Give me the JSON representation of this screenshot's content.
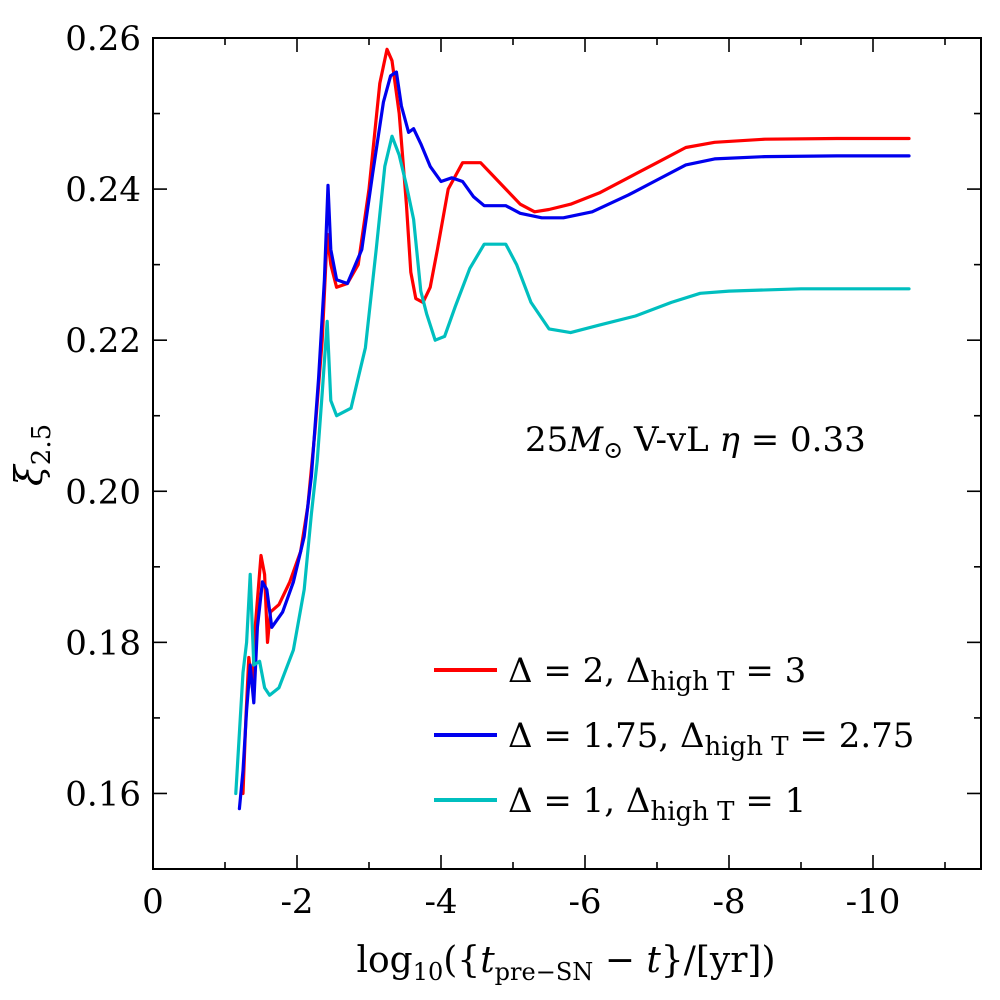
{
  "chart_data": {
    "type": "line",
    "title": "",
    "xlabel": "log10({t_pre-SN − t}/[yr])",
    "ylabel": "ξ2.5",
    "xlim": [
      0,
      -11.5
    ],
    "ylim": [
      0.15,
      0.26
    ],
    "x_ticks": [
      "0",
      "-2",
      "-4",
      "-6",
      "-8",
      "-10"
    ],
    "y_ticks": [
      "0.16",
      "0.18",
      "0.20",
      "0.22",
      "0.24",
      "0.26"
    ],
    "annotation": "25M⊙ V-vL η = 0.33",
    "legend": {
      "position": "lower-right"
    },
    "series": [
      {
        "name": "Δ = 2, Δhigh T = 3",
        "label_main": "Δ = 2, Δ",
        "label_sub": "high T",
        "label_tail": " = 3",
        "color": "#ff0000",
        "points": [
          [
            -1.25,
            0.16
          ],
          [
            -1.29,
            0.17
          ],
          [
            -1.33,
            0.178
          ],
          [
            -1.38,
            0.174
          ],
          [
            -1.42,
            0.182
          ],
          [
            -1.5,
            0.1915
          ],
          [
            -1.55,
            0.189
          ],
          [
            -1.59,
            0.18
          ],
          [
            -1.63,
            0.184
          ],
          [
            -1.75,
            0.185
          ],
          [
            -1.9,
            0.188
          ],
          [
            -2.05,
            0.192
          ],
          [
            -2.15,
            0.198
          ],
          [
            -2.25,
            0.208
          ],
          [
            -2.35,
            0.22
          ],
          [
            -2.42,
            0.234
          ],
          [
            -2.47,
            0.23
          ],
          [
            -2.55,
            0.227
          ],
          [
            -2.7,
            0.2275
          ],
          [
            -2.85,
            0.23
          ],
          [
            -3.0,
            0.24
          ],
          [
            -3.15,
            0.254
          ],
          [
            -3.25,
            0.2585
          ],
          [
            -3.32,
            0.257
          ],
          [
            -3.42,
            0.25
          ],
          [
            -3.52,
            0.238
          ],
          [
            -3.58,
            0.229
          ],
          [
            -3.65,
            0.2255
          ],
          [
            -3.75,
            0.225
          ],
          [
            -3.85,
            0.227
          ],
          [
            -3.95,
            0.232
          ],
          [
            -4.1,
            0.24
          ],
          [
            -4.3,
            0.2435
          ],
          [
            -4.55,
            0.2435
          ],
          [
            -4.7,
            0.242
          ],
          [
            -4.9,
            0.24
          ],
          [
            -5.1,
            0.238
          ],
          [
            -5.3,
            0.237
          ],
          [
            -5.5,
            0.2373
          ],
          [
            -5.8,
            0.238
          ],
          [
            -6.2,
            0.2395
          ],
          [
            -6.6,
            0.2415
          ],
          [
            -7.0,
            0.2435
          ],
          [
            -7.4,
            0.2455
          ],
          [
            -7.8,
            0.2462
          ],
          [
            -8.5,
            0.2466
          ],
          [
            -9.5,
            0.2467
          ],
          [
            -10.5,
            0.2467
          ]
        ]
      },
      {
        "name": "Δ = 1.75, Δhigh T = 2.75",
        "label_main": "Δ = 1.75, Δ",
        "label_sub": "high T",
        "label_tail": " = 2.75",
        "color": "#0000ee",
        "points": [
          [
            -1.2,
            0.158
          ],
          [
            -1.25,
            0.163
          ],
          [
            -1.3,
            0.171
          ],
          [
            -1.35,
            0.177
          ],
          [
            -1.4,
            0.172
          ],
          [
            -1.45,
            0.182
          ],
          [
            -1.52,
            0.188
          ],
          [
            -1.58,
            0.187
          ],
          [
            -1.65,
            0.182
          ],
          [
            -1.8,
            0.184
          ],
          [
            -1.95,
            0.188
          ],
          [
            -2.1,
            0.194
          ],
          [
            -2.2,
            0.202
          ],
          [
            -2.3,
            0.215
          ],
          [
            -2.38,
            0.228
          ],
          [
            -2.43,
            0.2405
          ],
          [
            -2.47,
            0.232
          ],
          [
            -2.55,
            0.228
          ],
          [
            -2.7,
            0.2275
          ],
          [
            -2.9,
            0.232
          ],
          [
            -3.05,
            0.242
          ],
          [
            -3.2,
            0.2515
          ],
          [
            -3.3,
            0.255
          ],
          [
            -3.38,
            0.2555
          ],
          [
            -3.45,
            0.251
          ],
          [
            -3.55,
            0.2475
          ],
          [
            -3.62,
            0.248
          ],
          [
            -3.72,
            0.246
          ],
          [
            -3.85,
            0.243
          ],
          [
            -4.0,
            0.241
          ],
          [
            -4.15,
            0.2415
          ],
          [
            -4.3,
            0.241
          ],
          [
            -4.45,
            0.239
          ],
          [
            -4.6,
            0.2378
          ],
          [
            -4.9,
            0.2378
          ],
          [
            -5.1,
            0.2368
          ],
          [
            -5.4,
            0.2362
          ],
          [
            -5.7,
            0.2362
          ],
          [
            -6.1,
            0.237
          ],
          [
            -6.6,
            0.2392
          ],
          [
            -7.0,
            0.2412
          ],
          [
            -7.4,
            0.2432
          ],
          [
            -7.8,
            0.244
          ],
          [
            -8.5,
            0.2443
          ],
          [
            -9.5,
            0.2444
          ],
          [
            -10.5,
            0.2444
          ]
        ]
      },
      {
        "name": "Δ = 1, Δhigh T = 1",
        "label_main": "Δ = 1, Δ",
        "label_sub": "high T",
        "label_tail": " = 1",
        "color": "#00bfbf",
        "points": [
          [
            -1.15,
            0.16
          ],
          [
            -1.2,
            0.168
          ],
          [
            -1.25,
            0.176
          ],
          [
            -1.3,
            0.18
          ],
          [
            -1.35,
            0.189
          ],
          [
            -1.4,
            0.177
          ],
          [
            -1.48,
            0.1775
          ],
          [
            -1.55,
            0.174
          ],
          [
            -1.62,
            0.173
          ],
          [
            -1.75,
            0.174
          ],
          [
            -1.95,
            0.179
          ],
          [
            -2.1,
            0.187
          ],
          [
            -2.2,
            0.197
          ],
          [
            -2.28,
            0.204
          ],
          [
            -2.35,
            0.213
          ],
          [
            -2.42,
            0.2225
          ],
          [
            -2.47,
            0.212
          ],
          [
            -2.55,
            0.21
          ],
          [
            -2.75,
            0.211
          ],
          [
            -2.95,
            0.219
          ],
          [
            -3.1,
            0.232
          ],
          [
            -3.22,
            0.243
          ],
          [
            -3.32,
            0.247
          ],
          [
            -3.42,
            0.2445
          ],
          [
            -3.52,
            0.2405
          ],
          [
            -3.62,
            0.236
          ],
          [
            -3.72,
            0.2265
          ],
          [
            -3.8,
            0.2235
          ],
          [
            -3.92,
            0.22
          ],
          [
            -4.05,
            0.2205
          ],
          [
            -4.2,
            0.2245
          ],
          [
            -4.4,
            0.2295
          ],
          [
            -4.6,
            0.2327
          ],
          [
            -4.9,
            0.2327
          ],
          [
            -5.05,
            0.23
          ],
          [
            -5.25,
            0.225
          ],
          [
            -5.5,
            0.2215
          ],
          [
            -5.8,
            0.221
          ],
          [
            -6.2,
            0.222
          ],
          [
            -6.7,
            0.2232
          ],
          [
            -7.2,
            0.225
          ],
          [
            -7.6,
            0.2262
          ],
          [
            -8.0,
            0.2265
          ],
          [
            -9.0,
            0.2268
          ],
          [
            -10.5,
            0.2268
          ]
        ]
      }
    ]
  }
}
